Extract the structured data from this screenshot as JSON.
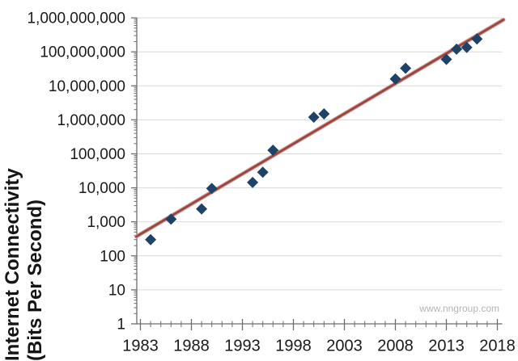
{
  "chart_data": {
    "type": "scatter",
    "title": "",
    "y_axis": {
      "label_line1": "Internet Connectivity",
      "label_line2": "(Bits Per Second)",
      "scale": "log",
      "min": 1,
      "max": 1000000000,
      "tick_labels": [
        "1",
        "10",
        "100",
        "1,000",
        "10,000",
        "100,000",
        "1,000,000",
        "10,000,000",
        "100,000,000",
        "1,000,000,000"
      ]
    },
    "x_axis": {
      "min": 1983,
      "max": 2018,
      "major_ticks": [
        1983,
        1988,
        1993,
        1998,
        2003,
        2008,
        2013,
        2018
      ],
      "minor_tick_step_years": 1
    },
    "points": [
      {
        "year": 1984,
        "bps": 300
      },
      {
        "year": 1986,
        "bps": 1200
      },
      {
        "year": 1989,
        "bps": 2400
      },
      {
        "year": 1990,
        "bps": 9600
      },
      {
        "year": 1994,
        "bps": 14400
      },
      {
        "year": 1995,
        "bps": 28800
      },
      {
        "year": 1996,
        "bps": 128000
      },
      {
        "year": 2000,
        "bps": 1200000
      },
      {
        "year": 2001,
        "bps": 1500000
      },
      {
        "year": 2008,
        "bps": 16000000
      },
      {
        "year": 2009,
        "bps": 33000000
      },
      {
        "year": 2013,
        "bps": 60000000
      },
      {
        "year": 2014,
        "bps": 120000000
      },
      {
        "year": 2015,
        "bps": 135000000
      },
      {
        "year": 2016,
        "bps": 240000000
      }
    ],
    "trendline": {
      "start": {
        "year": 1982.6,
        "bps": 370
      },
      "end": {
        "year": 2018.6,
        "bps": 880000000
      }
    },
    "legend": "off",
    "grid": "horizontal-only",
    "colors": {
      "marker": "#1f4268",
      "trend": "#9a453f",
      "trend_halo": "#d4a59f",
      "gridline": "#d9d9d9",
      "axis": "#6e6e6e",
      "tick_label": "#1a1a1a",
      "watermark": "#b5b5b5"
    },
    "watermark": "www.nngroup.com"
  }
}
